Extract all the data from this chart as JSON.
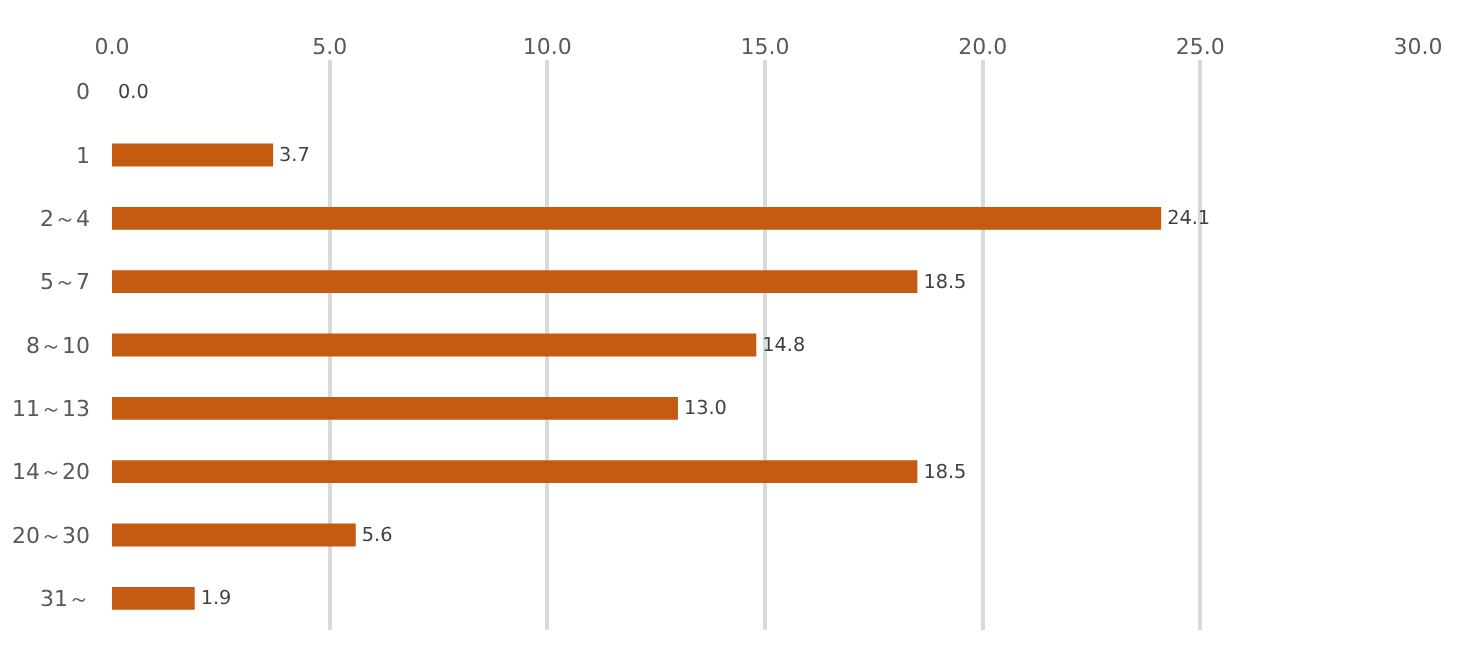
{
  "chart_data": {
    "type": "bar",
    "orientation": "horizontal",
    "categories": [
      "0",
      "1",
      "2～4",
      "5～7",
      "8～10",
      "11～13",
      "14～20",
      "20～30",
      "31～"
    ],
    "values": [
      0.0,
      3.7,
      24.1,
      18.5,
      14.8,
      13.0,
      18.5,
      5.6,
      1.9
    ],
    "color": "#c55a11",
    "xlim": [
      0,
      30
    ],
    "xticks": [
      {
        "value": 0,
        "label": "0.0"
      },
      {
        "value": 5,
        "label": "5.0"
      },
      {
        "value": 10,
        "label": "10.0"
      },
      {
        "value": 15,
        "label": "15.0"
      },
      {
        "value": 20,
        "label": "20.0"
      },
      {
        "value": 25,
        "label": "25.0"
      },
      {
        "value": 30,
        "label": "30.0"
      }
    ],
    "value_labels": [
      "0.0",
      "3.7",
      "24.1",
      "18.5",
      "14.8",
      "13.0",
      "18.5",
      "5.6",
      "1.9"
    ],
    "grid": "x",
    "legend": false
  }
}
